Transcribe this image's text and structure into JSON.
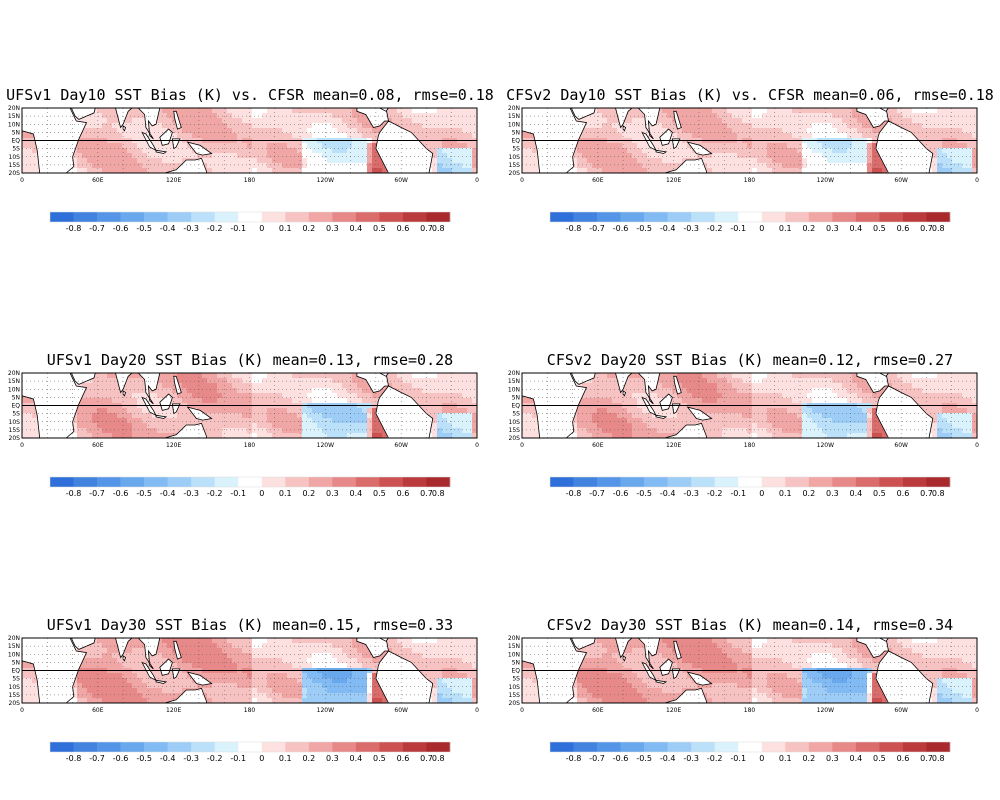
{
  "figure": {
    "panels": [
      {
        "title": "UFSv1 Day10 SST Bias (K) vs. CFSR mean=0.08, rmse=0.18",
        "model": "UFSv1",
        "day": 10
      },
      {
        "title": "CFSv2 Day10 SST Bias (K) vs. CFSR mean=0.06, rmse=0.18",
        "model": "CFSv2",
        "day": 10
      },
      {
        "title": "UFSv1 Day20 SST Bias (K) mean=0.13, rmse=0.28",
        "model": "UFSv1",
        "day": 20
      },
      {
        "title": "CFSv2 Day20 SST Bias (K) mean=0.12, rmse=0.27",
        "model": "CFSv2",
        "day": 20
      },
      {
        "title": "UFSv1 Day30 SST Bias (K) mean=0.15, rmse=0.33",
        "model": "UFSv1",
        "day": 30
      },
      {
        "title": "CFSv2 Day30 SST Bias (K) mean=0.14, rmse=0.34",
        "model": "CFSv2",
        "day": 30
      }
    ],
    "lat_labels": [
      "20N",
      "15N",
      "10N",
      "5N",
      "EQ",
      "5S",
      "10S",
      "15S",
      "20S"
    ],
    "lon_labels": [
      "0",
      "60E",
      "120E",
      "180",
      "120W",
      "60W",
      "0"
    ],
    "colorbar": {
      "labels": [
        "-0.8",
        "-0.7",
        "-0.6",
        "-0.5",
        "-0.4",
        "-0.3",
        "-0.2",
        "-0.1",
        "0",
        "0.1",
        "0.2",
        "0.3",
        "0.4",
        "0.5",
        "0.6",
        "0.7",
        "0.8"
      ],
      "colors": [
        "#2f6fd9",
        "#4283e0",
        "#5595e7",
        "#6aa8ee",
        "#82bbf3",
        "#9dcdf6",
        "#bbe0f9",
        "#daf2fb",
        "#ffffff",
        "#fde0e0",
        "#f7c3c2",
        "#f0a6a5",
        "#e68988",
        "#da6c6c",
        "#cc5151",
        "#bb3a3b",
        "#a82a2c"
      ]
    }
  }
}
